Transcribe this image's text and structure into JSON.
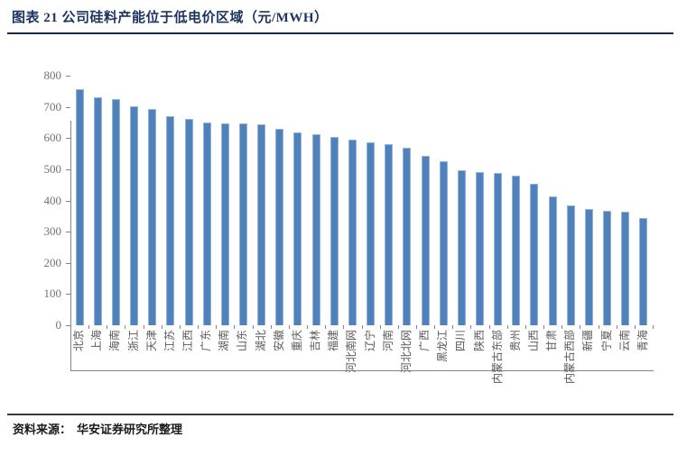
{
  "figure": {
    "title": "图表 21 公司硅料产能位于低电价区域（元/MWH）",
    "source_label": "资料来源：",
    "source_text": "华安证券研究所整理"
  },
  "colors": {
    "title_navy": "#1c3461",
    "rule_navy": "#1b2a4c",
    "bar_fill": "#4f81bd",
    "bar_edge": "#95b3d7",
    "axis_gray": "#848484",
    "y_label_gray": "#72727c",
    "x_label_gray": "#595959"
  },
  "chart_data": {
    "type": "bar",
    "title": "公司硅料产能位于低电价区域",
    "unit": "元/MWH",
    "categories": [
      "北京",
      "上海",
      "海南",
      "浙江",
      "天津",
      "江苏",
      "江西",
      "广东",
      "湖南",
      "山东",
      "湖北",
      "安徽",
      "重庆",
      "吉林",
      "福建",
      "河北南网",
      "辽宁",
      "河南",
      "河北北网",
      "广西",
      "黑龙江",
      "四川",
      "陕西",
      "内蒙古东部",
      "贵州",
      "山西",
      "甘肃",
      "内蒙古西部",
      "新疆",
      "宁夏",
      "云南",
      "青海"
    ],
    "values": [
      757,
      731,
      724,
      701,
      693,
      670,
      661,
      650,
      648,
      646,
      645,
      631,
      618,
      612,
      605,
      595,
      585,
      580,
      569,
      544,
      527,
      497,
      491,
      487,
      480,
      454,
      412,
      384,
      372,
      367,
      365,
      343
    ],
    "ylim": [
      0,
      800
    ],
    "ytick_step": 100,
    "xlabel": "",
    "ylabel": "",
    "grid": false,
    "legend": "none",
    "bar_orientation": "vertical",
    "x_label_rotation_deg": 90
  }
}
